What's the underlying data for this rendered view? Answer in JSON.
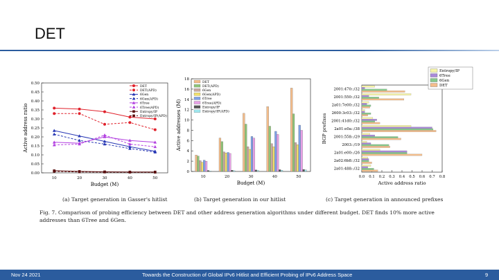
{
  "slide": {
    "title": "DET",
    "footer_date": "Nov 24 2021",
    "footer_title": "Towards the Construction of Global IPv6 Hitlist and Efficient Probing of IPv6 Address Space",
    "page_number": "9",
    "accent_color": "#2b5c9e"
  },
  "captions": {
    "a": "(a) Target generation in Gasser's hitlist",
    "b": "(b) Target generation in our hitlist",
    "c": "(c) Target generation in announced prefixes",
    "fig": "Fig. 7.  Comparison of probing efficiency between DET and other address generation algorithms under different budget. DET finds 10% more active addresses than 6Tree and 6Gen."
  },
  "chart_data": [
    {
      "type": "line",
      "xlabel": "Budget (M)",
      "ylabel": "Active address ratio",
      "x": [
        10,
        20,
        30,
        40,
        50
      ],
      "xlim": [
        5,
        55
      ],
      "ylim": [
        0,
        0.5
      ],
      "yticks": [
        "0.00",
        "0.05",
        "0.10",
        "0.15",
        "0.20",
        "0.25",
        "0.30",
        "0.35",
        "0.40",
        "0.45",
        "0.50"
      ],
      "legend_position": "top-right",
      "series": [
        {
          "name": "DET",
          "color": "#e0212b",
          "dash": false,
          "marker": "circle",
          "values": [
            0.36,
            0.355,
            0.34,
            0.31,
            0.3
          ]
        },
        {
          "name": "DET(APD)",
          "color": "#e0212b",
          "dash": true,
          "marker": "circle",
          "values": [
            0.33,
            0.33,
            0.27,
            0.28,
            0.24
          ]
        },
        {
          "name": "6Gen",
          "color": "#2636b4",
          "dash": false,
          "marker": "triangle",
          "values": [
            0.235,
            0.205,
            0.175,
            0.145,
            0.12
          ]
        },
        {
          "name": "6Gen(APD)",
          "color": "#2636b4",
          "dash": true,
          "marker": "triangle",
          "values": [
            0.215,
            0.18,
            0.16,
            0.135,
            0.115
          ]
        },
        {
          "name": "6Tree",
          "color": "#b23fe0",
          "dash": false,
          "marker": "triangle",
          "values": [
            0.17,
            0.165,
            0.2,
            0.18,
            0.17
          ]
        },
        {
          "name": "6Tree(APD)",
          "color": "#b23fe0",
          "dash": true,
          "marker": "triangle",
          "values": [
            0.155,
            0.16,
            0.21,
            0.16,
            0.145
          ]
        },
        {
          "name": "Entropy/IP",
          "color": "#5a1010",
          "dash": false,
          "marker": "square",
          "values": [
            0.012,
            0.008,
            0.006,
            0.005,
            0.005
          ]
        },
        {
          "name": "Entropy/IP(APD)",
          "color": "#5a1010",
          "dash": true,
          "marker": "square",
          "values": [
            0.008,
            0.005,
            0.004,
            0.003,
            0.003
          ]
        }
      ]
    },
    {
      "type": "bar",
      "xlabel": "Budget (M)",
      "ylabel": "Active addresses (M)",
      "categories": [
        "10",
        "20",
        "30",
        "40",
        "50"
      ],
      "ylim": [
        0,
        18
      ],
      "yticks": [
        "0",
        "2",
        "4",
        "6",
        "8",
        "10",
        "12",
        "14",
        "16",
        "18"
      ],
      "legend_position": "top-left",
      "series": [
        {
          "name": "DET",
          "color": "#f4bd8b",
          "values": [
            3.2,
            6.5,
            11.3,
            12.6,
            16.2
          ]
        },
        {
          "name": "DET(APD)",
          "color": "#8fc57a",
          "values": [
            3.0,
            5.8,
            9.2,
            8.8,
            11.2
          ]
        },
        {
          "name": "6Gen",
          "color": "#c9a9a1",
          "values": [
            2.1,
            3.8,
            4.8,
            5.4,
            5.6
          ]
        },
        {
          "name": "6Gen(APD)",
          "color": "#f1e06a",
          "values": [
            1.8,
            3.6,
            4.3,
            4.8,
            5.2
          ]
        },
        {
          "name": "6Tree",
          "color": "#7ea1e6",
          "values": [
            2.2,
            3.7,
            6.8,
            7.8,
            9.0
          ]
        },
        {
          "name": "6Tree(APD)",
          "color": "#e7a1e6",
          "values": [
            2.0,
            3.5,
            6.5,
            7.2,
            8.0
          ]
        },
        {
          "name": "Entropy/IP",
          "color": "#555555",
          "values": [
            0.2,
            0.25,
            0.3,
            0.35,
            0.4
          ]
        },
        {
          "name": "Entropy/IP(APD)",
          "color": "#9fe8f0",
          "values": [
            0.1,
            0.15,
            0.2,
            0.25,
            0.3
          ]
        }
      ]
    },
    {
      "type": "bar",
      "orientation": "horizontal",
      "xlabel": "Active address ratio",
      "ylabel": "BGP prefixes",
      "categories": [
        "2001:470::/32",
        "2001:550::/32",
        "2a01:7e00::/32",
        "2600:3c03::/32",
        "2001:41d0::/32",
        "2a01:e0a::/38",
        "2001:558::/29",
        "2003::/19",
        "2a01:e00::/26",
        "2a02:6b8::/32",
        "2a01:488::/32"
      ],
      "xlim": [
        0,
        0.8
      ],
      "xticks": [
        "0.0",
        "0.1",
        "0.2",
        "0.3",
        "0.4",
        "0.5",
        "0.6",
        "0.7",
        "0.8"
      ],
      "legend_position": "top-right",
      "series": [
        {
          "name": "Entropy/IP",
          "color": "#f7f5a8",
          "values": [
            0.13,
            0.49,
            0.07,
            0.03,
            0.11,
            0.49,
            0.08,
            0.05,
            0.18,
            0.06,
            0.09
          ]
        },
        {
          "name": "6Tree",
          "color": "#a98ad9",
          "values": [
            0.03,
            0.07,
            0.05,
            0.03,
            0.15,
            0.7,
            0.13,
            0.09,
            0.45,
            0.07,
            0.06
          ]
        },
        {
          "name": "6Gen",
          "color": "#86c98c",
          "values": [
            0.25,
            0.17,
            0.09,
            0.09,
            0.13,
            0.71,
            0.36,
            0.27,
            0.45,
            0.07,
            0.12
          ]
        },
        {
          "name": "DET",
          "color": "#f4bd8b",
          "values": [
            0.43,
            0.42,
            0.08,
            0.06,
            0.18,
            0.74,
            0.39,
            0.28,
            0.6,
            0.1,
            0.16
          ]
        }
      ]
    }
  ]
}
